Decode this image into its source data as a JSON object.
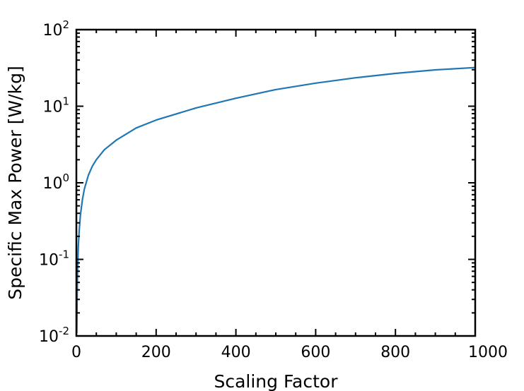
{
  "chart_data": {
    "type": "line",
    "title": "",
    "xlabel": "Scaling Factor",
    "ylabel": "Specific Max Power [W/kg]",
    "xlim": [
      0,
      1000
    ],
    "ylim": [
      0.01,
      100
    ],
    "yscale": "log",
    "grid": false,
    "line_color": "#1f77b4",
    "x_tick_labels": [
      "0",
      "200",
      "400",
      "600",
      "800",
      "1000"
    ],
    "y_tick_labels": [
      {
        "base": "10",
        "exp": "-2"
      },
      {
        "base": "10",
        "exp": "-1"
      },
      {
        "base": "10",
        "exp": "0"
      },
      {
        "base": "10",
        "exp": "1"
      },
      {
        "base": "10",
        "exp": "2"
      }
    ],
    "series": [
      {
        "x": [
          1,
          2,
          3,
          5,
          7,
          10,
          15,
          20,
          30,
          40,
          50,
          70,
          100,
          150,
          200,
          300,
          400,
          500,
          600,
          700,
          800,
          900,
          1000
        ],
        "y": [
          0.011,
          0.034,
          0.075,
          0.15,
          0.23,
          0.37,
          0.6,
          0.83,
          1.25,
          1.65,
          2.0,
          2.7,
          3.6,
          5.2,
          6.6,
          9.5,
          12.7,
          16.5,
          20.0,
          23.5,
          26.8,
          29.8,
          32.0
        ]
      }
    ]
  }
}
